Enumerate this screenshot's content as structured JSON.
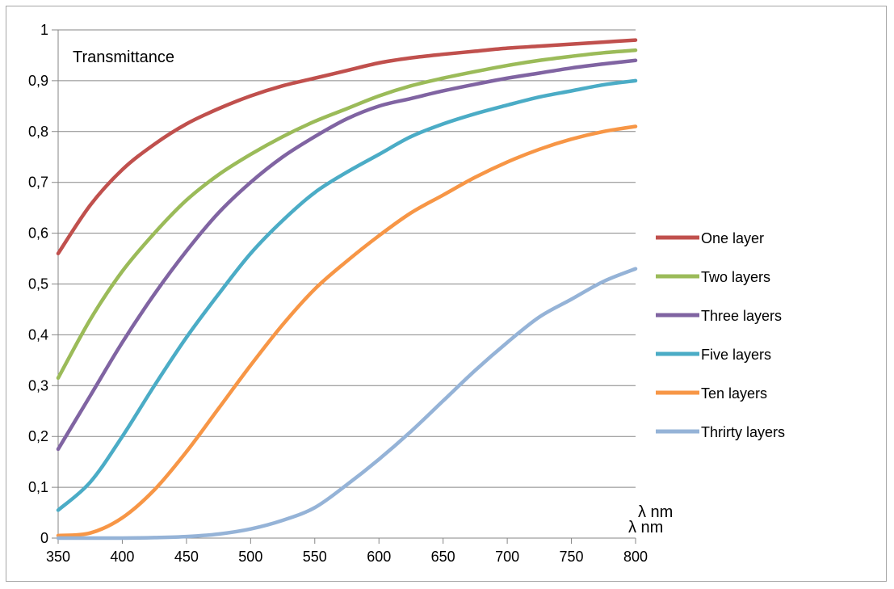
{
  "chart_data": {
    "type": "line",
    "title": "",
    "annotation": "Transmittance",
    "xlabel": "λ nm",
    "xlabel_repeat": "λ nm",
    "ylabel": "",
    "xlim": [
      350,
      800
    ],
    "ylim": [
      0,
      1
    ],
    "x_ticks": [
      350,
      400,
      450,
      500,
      550,
      600,
      650,
      700,
      750,
      800
    ],
    "x_tick_labels": [
      "350",
      "400",
      "450",
      "500",
      "550",
      "600",
      "650",
      "700",
      "750",
      "800"
    ],
    "y_ticks": [
      0,
      0.1,
      0.2,
      0.3,
      0.4,
      0.5,
      0.6,
      0.7,
      0.8,
      0.9,
      1
    ],
    "y_tick_labels": [
      "0",
      "0,1",
      "0,2",
      "0,3",
      "0,4",
      "0,5",
      "0,6",
      "0,7",
      "0,8",
      "0,9",
      "1"
    ],
    "grid": "horizontal",
    "legend_position": "right",
    "x": [
      350,
      375,
      400,
      425,
      450,
      475,
      500,
      525,
      550,
      575,
      600,
      625,
      650,
      675,
      700,
      725,
      750,
      775,
      800
    ],
    "series": [
      {
        "name": "One layer",
        "color": "#c0504d",
        "values": [
          0.56,
          0.655,
          0.725,
          0.775,
          0.815,
          0.845,
          0.87,
          0.89,
          0.905,
          0.92,
          0.935,
          0.945,
          0.952,
          0.958,
          0.964,
          0.968,
          0.972,
          0.976,
          0.98
        ]
      },
      {
        "name": "Two layers",
        "color": "#9bbb59",
        "values": [
          0.315,
          0.43,
          0.525,
          0.6,
          0.665,
          0.715,
          0.755,
          0.79,
          0.82,
          0.845,
          0.87,
          0.89,
          0.905,
          0.918,
          0.93,
          0.94,
          0.948,
          0.955,
          0.96
        ]
      },
      {
        "name": "Three layers",
        "color": "#8064a2",
        "values": [
          0.175,
          0.28,
          0.385,
          0.48,
          0.565,
          0.64,
          0.7,
          0.75,
          0.79,
          0.825,
          0.85,
          0.865,
          0.88,
          0.893,
          0.905,
          0.915,
          0.925,
          0.933,
          0.94
        ]
      },
      {
        "name": "Five layers",
        "color": "#4bacc6",
        "values": [
          0.055,
          0.11,
          0.2,
          0.3,
          0.395,
          0.48,
          0.56,
          0.625,
          0.68,
          0.72,
          0.755,
          0.79,
          0.815,
          0.835,
          0.852,
          0.868,
          0.88,
          0.892,
          0.9
        ]
      },
      {
        "name": "Ten layers",
        "color": "#f79646",
        "values": [
          0.005,
          0.01,
          0.04,
          0.095,
          0.17,
          0.255,
          0.34,
          0.42,
          0.49,
          0.545,
          0.595,
          0.64,
          0.675,
          0.71,
          0.74,
          0.765,
          0.785,
          0.8,
          0.81
        ]
      },
      {
        "name": "Thrirty layers",
        "color": "#95b3d7",
        "values": [
          0.0,
          0.0,
          0.0,
          0.001,
          0.003,
          0.008,
          0.018,
          0.035,
          0.06,
          0.105,
          0.155,
          0.21,
          0.27,
          0.33,
          0.385,
          0.435,
          0.47,
          0.505,
          0.53
        ]
      }
    ]
  }
}
